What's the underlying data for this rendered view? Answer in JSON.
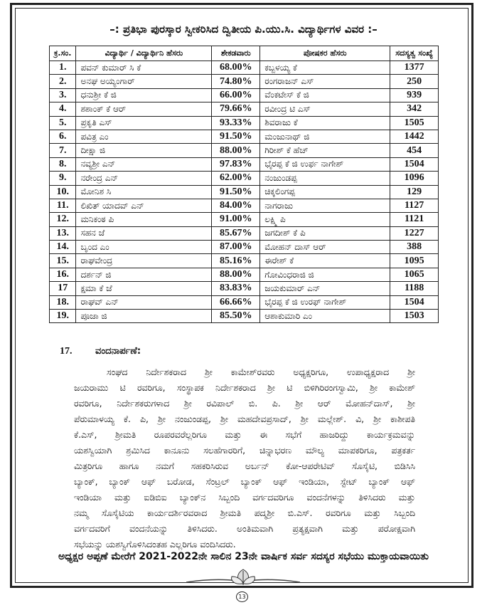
{
  "title": "–: ಪ್ರತಿಭಾ ಪುರಸ್ಕಾರ ಸ್ವೀಕರಿಸಿದ ದ್ವಿತೀಯ ಪಿ.ಯು.ಸಿ. ವಿದ್ಯಾರ್ಥಿಗಳ ವಿವರ :–",
  "table": {
    "headers": [
      "ಕ್ರ.ಸಂ.",
      "ವಿದ್ಯಾರ್ಥಿ / ವಿದ್ಯಾರ್ಥಿನಿ ಹೆಸರು",
      "ಶೇಕಡವಾರು",
      "ಪೋಷಕರ ಹೆಸರು",
      "ಸದಸ್ಯತ್ವ ಸಂಖ್ಯೆ"
    ],
    "rows": [
      [
        "1.",
        "ಪವನ್ ಕುಮಾರ್ ಸಿ ಕೆ",
        "68.00%",
        "ಕಬ್ಬಳಯ್ಯ ಕೆ",
        "1377"
      ],
      [
        "2.",
        "ಅನಘ ಅಯ್ಯಂಗಾರ್",
        "74.80%",
        "ರಂಗರಾಜನ್ ಎಸ್",
        "250"
      ],
      [
        "3.",
        "ಧನುಶ್ರೀ ಕೆ ಜಿ",
        "66.00%",
        "ವೆಂಕಟೇಸ್ ಕೆ ಜಿ",
        "939"
      ],
      [
        "4.",
        "ಶಶಾಂಕ್ ಕೆ ಆರ್",
        "79.66%",
        "ರವೀಂದ್ರ ಟಿ ಎಸ್",
        "342"
      ],
      [
        "5.",
        "ಪ್ರಕೃತಿ ಎಸ್",
        "93.33%",
        "ಶಿವರಾಜು ಕೆ",
        "1505"
      ],
      [
        "6.",
        "ಪವಿತ್ರ ಎಂ",
        "91.50%",
        "ಮಂಜುನಾಥ್ ಜಿ",
        "1442"
      ],
      [
        "7.",
        "ದೀಕ್ಷಾ ಜಿ",
        "88.00%",
        "ಗಿರೀಶ್ ಕೆ ಹೆಚ್",
        "454"
      ],
      [
        "8.",
        "ನವ್ಯಶ್ರೀ ಎನ್",
        "97.83%",
        "ಭೈರಪ್ಪ ಕೆ ಜಿ ಉರ್ಫ ನಾಗೇಶ್",
        "1504"
      ],
      [
        "9.",
        "ನರೇಂದ್ರ ಎನ್",
        "62.00%",
        "ನಂಜುಂಡಪ್ಪ",
        "1096"
      ],
      [
        "10.",
        "ಮೋನಿಶ ಸಿ",
        "91.50%",
        "ಚಿಕ್ಕಲಿಂಗಪ್ಪ",
        "129"
      ],
      [
        "11.",
        "ಲಿಖಿತ್ ಯಾದವ್ ಎನ್",
        "84.00%",
        "ನಾಗರಾಜು",
        "1127"
      ],
      [
        "12.",
        "ಮನಿಕಂಠ ಪಿ",
        "91.00%",
        "ಲಕ್ಷ್ಮಿ ಪಿ",
        "1121"
      ],
      [
        "13.",
        "ಸಹನ ಜೆ",
        "85.67%",
        "ಜಗದೀಶ್ ಕೆ ಪಿ",
        "1227"
      ],
      [
        "14.",
        "ಬೃಂದ ಎಂ",
        "87.00%",
        "ಮೋಹನ್ ದಾಸ್ ಆರ್",
        "388"
      ],
      [
        "15.",
        "ರಾಘವೇಂದ್ರ",
        "85.16%",
        "ಈರೇಶ್ ಕೆ",
        "1095"
      ],
      [
        "16.",
        "ದರ್ಶನ್ ಜಿ",
        "88.00%",
        "ಗೋವಿಂಧರಾಜಿ ಜಿ",
        "1065"
      ],
      [
        "17",
        "ಕ್ಷಮಾ ಕೆ ಜೆ",
        "83.83%",
        "ಜಯಕುಮಾರ್ ಎನ್",
        "1188"
      ],
      [
        "18.",
        "ರಾಘವ್ ಎನ್",
        "66.66%",
        "ಭೈರಪ್ಪ ಕೆ ಜಿ ಉರಫ್ ನಾಗೇಶ್",
        "1504"
      ],
      [
        "19.",
        "ಪೂಜಾ ಜಿ",
        "85.50%",
        "ಆಶಾಕುಮಾರಿ ಎಂ",
        "1503"
      ]
    ]
  },
  "section": {
    "number": "17.",
    "heading": "ವಂದನಾರ್ಪಣೆ:",
    "lines": [
      "ಸಂಘದ ನಿರ್ದೇಶಕರಾದ ಶ್ರೀ ಕಾಮೇಶ್‌ರವರು ಅಧ್ಯಕ್ಷರಿಗೂ, ಉಪಾಧ್ಯಕ್ಷರಾದ ಶ್ರೀ",
      "ಜಯರಾಮು ಟಿ ರವರಿಗೂ, ಸಂಸ್ಥಾಪಕ ನಿರ್ದೇಶಕರಾದ ಶ್ರೀ ಟಿ ಬಿಳಿಗಿರಿರಂಗಸ್ವಾಮಿ, ಶ್ರೀ ಕಾಮೇಶ್",
      "ರವರಿಗೂ, ನಿರ್ದೇಶಕರುಗಳಾದ ಶ್ರೀ ರವಿಪಾಲ್ ಬಿ. ಪಿ. ಶ್ರೀ ಆರ್ ಮೋಹನ್‌ದಾಸ್, ಶ್ರೀ",
      "ಪೆರುಮಾಳಯ್ಯ ಕೆ. ಪಿ, ಶ್ರೀ ನಂಜುಂಡಪ್ಪ, ಶ್ರೀ ಮಹದೇವಪ್ರಸಾದ್, ಶ್ರೀ ಮಲ್ಲೇಶ್. ವಿ, ಶ್ರೀ ಕಾಶೀಪತಿ",
      "ಕೆ.ಎಸ್, ಶ್ರೀಮತಿ ರೂಪರವರೆಲ್ಲರಿಗೂ ಮತ್ತು ಈ ಸಭೆಗೆ ಹಾಜರಿದ್ದು ಕಾರ್ಯಕ್ರಮವನ್ನು",
      "ಯಶಸ್ವಿಯಾಗಿ ಶ್ರಮಿಸಿದ ಕಾನೂನು ಸಲಹೆಗಾರರಿಗೆ, ಚಿನ್ನಾಭರಣ ಮೌಲ್ಯ ಮಾಪಕರಿಗೂ, ಪತ್ರಕರ್ತ",
      "ಮಿತ್ರರಿಗೂ ಹಾಗೂ ನಮಗೆ ಸಹಕರಿಸಿರುವ ಅರ್ಬನ್ ಕೋ-ಆಪರೇಟಿವ್ ಸೊಸೈಟಿ, ಬಿಡಿಸಿಸಿ",
      "ಬ್ಯಾಂಕ್, ಬ್ಯಾಂಕ್ ಆಫ್ ಬರೋಡ, ಸೆಂಟ್ರಲ್ ಬ್ಯಾಂಕ್ ಆಫ್ ಇಂಡಿಯಾ, ಸ್ಟೇಟ್ ಬ್ಯಾಂಕ್ ಆಫ್",
      "ಇಂಡಿಯಾ ಮತ್ತು ಐಡಿಬಿಐ ಬ್ಯಾಂಕ್‌ನ ಸಿಬ್ಬಂದಿ ವರ್ಗದವರಿಗೂ ವಂದನೆಗಳನ್ನು ತಿಳಿಸಿದರು ಮತ್ತು",
      "ನಮ್ಮ ಸೊಸೈಟಿಯ ಕಾರ್ಯದರ್ಶಿರವರಾದ ಶ್ರೀಮತಿ ಪದ್ಮಶ್ರೀ ಬಿ.ಎಸ್. ರವರಿಗೂ ಮತ್ತು ಸಿಬ್ಬಂದಿ",
      "ವರ್ಗದವರಿಗೆ ವಂದನೆಯನ್ನು ತಿಳಿಸಿದರು. ಅಂತಿಮವಾಗಿ ಪ್ರತ್ಯಕ್ಷವಾಗಿ ಮತ್ತು ಪರೋಕ್ಷವಾಗಿ",
      "ಸಭೆಯನ್ನು ಯಶಸ್ವಿಗೊಳಿಸಿದಂತಹ ಎಲ್ಲರಿಗೂ ವಂದಿಸಿದರು."
    ]
  },
  "closing": "ಅಧ್ಯಕ್ಷರ ಅಪ್ಪಣೆ ಮೇರೆಗೆ 2021-2022ನೇ ಸಾಲಿನ 23ನೇ ವಾರ್ಷಿಕ ಸರ್ವ ಸದಸ್ಯರ ಸಭೆಯು ಮುಕ್ತಾಯವಾಯಿತು",
  "page_number": "13",
  "ornament_icon": "leaf-flourish-icon"
}
